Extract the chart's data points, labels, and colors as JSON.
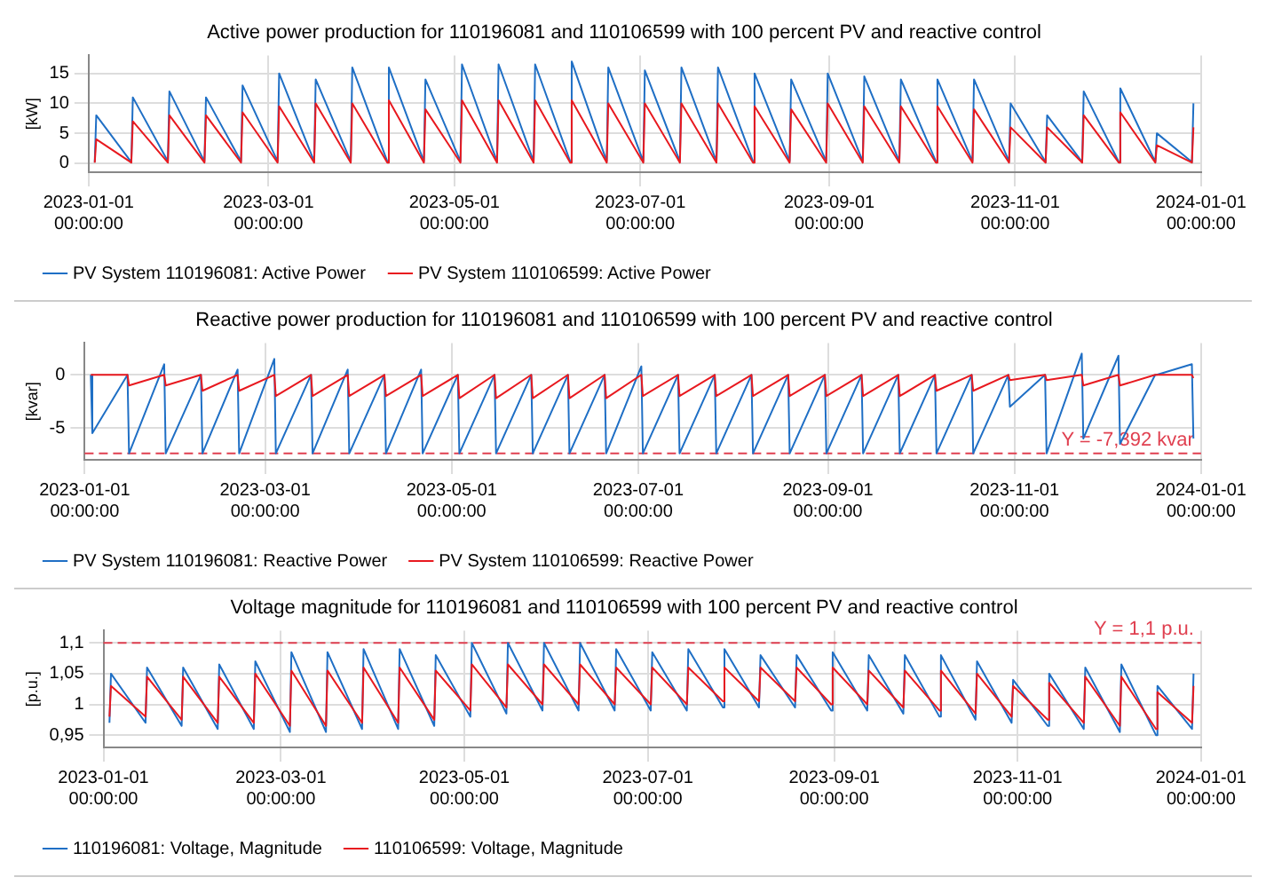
{
  "chart_data": [
    {
      "type": "line",
      "title": "Active power production for 110196081 and 110106599 with 100 percent PV and reactive control",
      "ylabel": "[kW]",
      "x": [
        "2023-01-03",
        "2023-01-03T12:00",
        "2023-01-15",
        "2023-01-15T12:00",
        "2023-01-27",
        "2023-01-27T12:00",
        "2023-02-08",
        "2023-02-08T12:00",
        "2023-02-20",
        "2023-02-20T12:00",
        "2023-03-04",
        "2023-03-04T12:00",
        "2023-03-16",
        "2023-03-16T12:00",
        "2023-03-28",
        "2023-03-28T12:00",
        "2023-04-09",
        "2023-04-09T12:00",
        "2023-04-21",
        "2023-04-21T12:00",
        "2023-05-03",
        "2023-05-03T12:00",
        "2023-05-15",
        "2023-05-15T12:00",
        "2023-05-27",
        "2023-05-27T12:00",
        "2023-06-08",
        "2023-06-08T12:00",
        "2023-06-20",
        "2023-06-20T12:00",
        "2023-07-02",
        "2023-07-02T12:00",
        "2023-07-14",
        "2023-07-14T12:00",
        "2023-07-26",
        "2023-07-26T12:00",
        "2023-08-07",
        "2023-08-07T12:00",
        "2023-08-19",
        "2023-08-19T12:00",
        "2023-08-31",
        "2023-08-31T12:00",
        "2023-09-12",
        "2023-09-12T12:00",
        "2023-09-24",
        "2023-09-24T12:00",
        "2023-10-06",
        "2023-10-06T12:00",
        "2023-10-18",
        "2023-10-18T12:00",
        "2023-10-30",
        "2023-10-30T12:00",
        "2023-11-11",
        "2023-11-11T12:00",
        "2023-11-23",
        "2023-11-23T12:00",
        "2023-12-05",
        "2023-12-05T12:00",
        "2023-12-17",
        "2023-12-17T12:00",
        "2023-12-29",
        "2023-12-29T12:00"
      ],
      "series": [
        {
          "name": "PV System 110196081: Active Power",
          "color": "#1f6fc5",
          "values": [
            0.2,
            8,
            0.2,
            11,
            0.3,
            12,
            0.3,
            11,
            0.3,
            13,
            0.3,
            15,
            0.3,
            14,
            0.3,
            16,
            0.3,
            16,
            0.3,
            14,
            0.3,
            16.5,
            0.3,
            16.5,
            0.3,
            16.5,
            0.3,
            17,
            0.3,
            16,
            0.3,
            15.5,
            0.3,
            16,
            0.3,
            16,
            0.3,
            15,
            0.3,
            14,
            0.3,
            15,
            0.3,
            14.5,
            0.3,
            14,
            0.3,
            14,
            0.3,
            14,
            0.3,
            10,
            0.2,
            8,
            0.2,
            12,
            0.2,
            12.5,
            0.2,
            5,
            0.2,
            10
          ]
        },
        {
          "name": "PV System 110106599: Active Power",
          "color": "#e8191f",
          "values": [
            0.1,
            4,
            0.1,
            7,
            0.1,
            8,
            0.1,
            8,
            0.1,
            8.5,
            0.1,
            9.5,
            0.1,
            10,
            0.1,
            10,
            0.1,
            10.5,
            0.1,
            9,
            0.1,
            10.5,
            0.1,
            10.5,
            0.1,
            10.5,
            0.1,
            10.5,
            0.1,
            10,
            0.1,
            10,
            0.1,
            10,
            0.1,
            10,
            0.1,
            9.5,
            0.1,
            9,
            0.1,
            10,
            0.1,
            9.5,
            0.1,
            9.5,
            0.1,
            9.5,
            0.1,
            9,
            0.1,
            6,
            0.1,
            6,
            0.1,
            8,
            0.1,
            8.5,
            0.1,
            3,
            0.1,
            6
          ]
        }
      ],
      "xlim": [
        "2023-01-01",
        "2024-01-01"
      ],
      "xticks": [
        {
          "value": "2023-01-01",
          "label": "2023-01-01 00:00:00"
        },
        {
          "value": "2023-03-01",
          "label": "2023-03-01 00:00:00"
        },
        {
          "value": "2023-05-01",
          "label": "2023-05-01 00:00:00"
        },
        {
          "value": "2023-07-01",
          "label": "2023-07-01 00:00:00"
        },
        {
          "value": "2023-09-01",
          "label": "2023-09-01 00:00:00"
        },
        {
          "value": "2023-11-01",
          "label": "2023-11-01 00:00:00"
        },
        {
          "value": "2024-01-01",
          "label": "2024-01-01 00:00:00"
        }
      ],
      "ylim": [
        -1.5,
        18
      ],
      "yticks": [
        0,
        5,
        10,
        15
      ],
      "grid": true,
      "legend": "bottom left",
      "marker": "none",
      "line_style": "solid"
    },
    {
      "type": "line",
      "title": "Reactive power production for 110196081 and 110106599 with 100 percent PV and reactive control",
      "ylabel": "[kvar]",
      "x": [
        "2023-01-03",
        "2023-01-03T12:00",
        "2023-01-15",
        "2023-01-15T12:00",
        "2023-01-27",
        "2023-01-27T12:00",
        "2023-02-08",
        "2023-02-08T12:00",
        "2023-02-20",
        "2023-02-20T12:00",
        "2023-03-04",
        "2023-03-04T12:00",
        "2023-03-16",
        "2023-03-16T12:00",
        "2023-03-28",
        "2023-03-28T12:00",
        "2023-04-09",
        "2023-04-09T12:00",
        "2023-04-21",
        "2023-04-21T12:00",
        "2023-05-03",
        "2023-05-03T12:00",
        "2023-05-15",
        "2023-05-15T12:00",
        "2023-05-27",
        "2023-05-27T12:00",
        "2023-06-08",
        "2023-06-08T12:00",
        "2023-06-20",
        "2023-06-20T12:00",
        "2023-07-02",
        "2023-07-02T12:00",
        "2023-07-14",
        "2023-07-14T12:00",
        "2023-07-26",
        "2023-07-26T12:00",
        "2023-08-07",
        "2023-08-07T12:00",
        "2023-08-19",
        "2023-08-19T12:00",
        "2023-08-31",
        "2023-08-31T12:00",
        "2023-09-12",
        "2023-09-12T12:00",
        "2023-09-24",
        "2023-09-24T12:00",
        "2023-10-06",
        "2023-10-06T12:00",
        "2023-10-18",
        "2023-10-18T12:00",
        "2023-10-30",
        "2023-10-30T12:00",
        "2023-11-11",
        "2023-11-11T12:00",
        "2023-11-23",
        "2023-11-23T12:00",
        "2023-12-05",
        "2023-12-05T12:00",
        "2023-12-17",
        "2023-12-17T12:00",
        "2023-12-29",
        "2023-12-29T12:00"
      ],
      "series": [
        {
          "name": "PV System 110196081: Reactive Power",
          "color": "#1f6fc5",
          "values": [
            0,
            -5.5,
            0,
            -7.4,
            1,
            -7.4,
            0,
            -7.4,
            0.5,
            -7.4,
            1.5,
            -7.4,
            0,
            -7.4,
            0.5,
            -7.4,
            0,
            -7.4,
            0.5,
            -7.4,
            0,
            -7.4,
            0,
            -7.4,
            0,
            -7.4,
            0,
            -7.4,
            0,
            -7.4,
            0.8,
            -7.4,
            0,
            -7.4,
            0,
            -7.4,
            0,
            -7.4,
            0,
            -7.4,
            0,
            -7.4,
            0,
            -7.4,
            0,
            -7.4,
            0,
            -7.4,
            0,
            -7.4,
            0,
            -3,
            0,
            -7.4,
            2,
            -6,
            1.8,
            -6.5,
            0,
            0,
            1,
            -6
          ]
        },
        {
          "name": "PV System 110106599: Reactive Power",
          "color": "#e8191f",
          "values": [
            0,
            0,
            0,
            -1,
            0,
            -1,
            0,
            -1.5,
            0,
            -1.5,
            0,
            -2,
            0,
            -2,
            0,
            -2,
            0,
            -2,
            0,
            -2,
            0,
            -2.2,
            0,
            -2.2,
            0,
            -2.2,
            0,
            -2.2,
            0,
            -2.2,
            0,
            -2,
            0,
            -2,
            0,
            -2,
            0,
            -2,
            0,
            -2,
            0,
            -2,
            0,
            -2,
            0,
            -2,
            0,
            -1.5,
            0,
            -1.5,
            0,
            -0.5,
            0,
            -0.5,
            0,
            -1,
            0,
            -1,
            0,
            0,
            0,
            -0.3
          ]
        }
      ],
      "xlim": [
        "2023-01-01",
        "2024-01-01"
      ],
      "xticks": [
        {
          "value": "2023-01-01",
          "label": "2023-01-01 00:00:00"
        },
        {
          "value": "2023-03-01",
          "label": "2023-03-01 00:00:00"
        },
        {
          "value": "2023-05-01",
          "label": "2023-05-01 00:00:00"
        },
        {
          "value": "2023-07-01",
          "label": "2023-07-01 00:00:00"
        },
        {
          "value": "2023-09-01",
          "label": "2023-09-01 00:00:00"
        },
        {
          "value": "2023-11-01",
          "label": "2023-11-01 00:00:00"
        },
        {
          "value": "2024-01-01",
          "label": "2024-01-01 00:00:00"
        }
      ],
      "ylim": [
        -8,
        3
      ],
      "yticks": [
        -5,
        0
      ],
      "ref_lines": [
        {
          "axis": "y",
          "value": -7.392,
          "label": "Y = -7,392 kvar",
          "color": "#e04050",
          "line_style": "dashed"
        }
      ],
      "grid": true,
      "legend": "bottom left",
      "marker": "none",
      "line_style": "solid"
    },
    {
      "type": "line",
      "title": "Voltage magnitude for 110196081 and 110106599 with 100 percent PV and reactive control",
      "ylabel": "[p.u.]",
      "x": [
        "2023-01-03",
        "2023-01-03T12:00",
        "2023-01-15",
        "2023-01-15T12:00",
        "2023-01-27",
        "2023-01-27T12:00",
        "2023-02-08",
        "2023-02-08T12:00",
        "2023-02-20",
        "2023-02-20T12:00",
        "2023-03-04",
        "2023-03-04T12:00",
        "2023-03-16",
        "2023-03-16T12:00",
        "2023-03-28",
        "2023-03-28T12:00",
        "2023-04-09",
        "2023-04-09T12:00",
        "2023-04-21",
        "2023-04-21T12:00",
        "2023-05-03",
        "2023-05-03T12:00",
        "2023-05-15",
        "2023-05-15T12:00",
        "2023-05-27",
        "2023-05-27T12:00",
        "2023-06-08",
        "2023-06-08T12:00",
        "2023-06-20",
        "2023-06-20T12:00",
        "2023-07-02",
        "2023-07-02T12:00",
        "2023-07-14",
        "2023-07-14T12:00",
        "2023-07-26",
        "2023-07-26T12:00",
        "2023-08-07",
        "2023-08-07T12:00",
        "2023-08-19",
        "2023-08-19T12:00",
        "2023-08-31",
        "2023-08-31T12:00",
        "2023-09-12",
        "2023-09-12T12:00",
        "2023-09-24",
        "2023-09-24T12:00",
        "2023-10-06",
        "2023-10-06T12:00",
        "2023-10-18",
        "2023-10-18T12:00",
        "2023-10-30",
        "2023-10-30T12:00",
        "2023-11-11",
        "2023-11-11T12:00",
        "2023-11-23",
        "2023-11-23T12:00",
        "2023-12-05",
        "2023-12-05T12:00",
        "2023-12-17",
        "2023-12-17T12:00",
        "2023-12-29",
        "2023-12-29T12:00"
      ],
      "series": [
        {
          "name": "110196081: Voltage, Magnitude",
          "color": "#1f6fc5",
          "values": [
            0.97,
            1.05,
            0.97,
            1.06,
            0.965,
            1.06,
            0.96,
            1.065,
            0.96,
            1.07,
            0.955,
            1.085,
            0.955,
            1.085,
            0.96,
            1.09,
            0.96,
            1.09,
            0.965,
            1.08,
            0.98,
            1.1,
            0.985,
            1.1,
            0.99,
            1.1,
            0.99,
            1.1,
            0.99,
            1.09,
            0.99,
            1.085,
            0.99,
            1.09,
            0.995,
            1.09,
            0.995,
            1.08,
            0.995,
            1.08,
            0.99,
            1.085,
            0.99,
            1.08,
            0.985,
            1.08,
            0.98,
            1.08,
            0.975,
            1.07,
            0.97,
            1.04,
            0.965,
            1.05,
            0.96,
            1.06,
            0.955,
            1.065,
            0.95,
            1.03,
            0.96,
            1.05
          ]
        },
        {
          "name": "110106599: Voltage, Magnitude",
          "color": "#e8191f",
          "values": [
            0.98,
            1.03,
            0.98,
            1.045,
            0.975,
            1.045,
            0.97,
            1.045,
            0.97,
            1.05,
            0.965,
            1.055,
            0.965,
            1.055,
            0.97,
            1.06,
            0.97,
            1.06,
            0.975,
            1.055,
            0.99,
            1.065,
            0.995,
            1.065,
            1,
            1.065,
            1,
            1.065,
            1,
            1.06,
            1,
            1.06,
            1,
            1.06,
            1.005,
            1.06,
            1.005,
            1.06,
            1.005,
            1.06,
            1,
            1.06,
            1,
            1.055,
            0.995,
            1.055,
            0.99,
            1.055,
            0.985,
            1.05,
            0.98,
            1.03,
            0.975,
            1.035,
            0.97,
            1.045,
            0.965,
            1.045,
            0.96,
            1.02,
            0.97,
            1.03
          ]
        }
      ],
      "xlim": [
        "2023-01-01",
        "2024-01-01"
      ],
      "xticks": [
        {
          "value": "2023-01-01",
          "label": "2023-01-01 00:00:00"
        },
        {
          "value": "2023-03-01",
          "label": "2023-03-01 00:00:00"
        },
        {
          "value": "2023-05-01",
          "label": "2023-05-01 00:00:00"
        },
        {
          "value": "2023-07-01",
          "label": "2023-07-01 00:00:00"
        },
        {
          "value": "2023-09-01",
          "label": "2023-09-01 00:00:00"
        },
        {
          "value": "2023-11-01",
          "label": "2023-11-01 00:00:00"
        },
        {
          "value": "2024-01-01",
          "label": "2024-01-01 00:00:00"
        }
      ],
      "ylim": [
        0.93,
        1.12
      ],
      "yticks": [
        {
          "value": 0.95,
          "label": "0,95"
        },
        {
          "value": 1,
          "label": "1"
        },
        {
          "value": 1.05,
          "label": "1,05"
        },
        {
          "value": 1.1,
          "label": "1,1"
        }
      ],
      "ref_lines": [
        {
          "axis": "y",
          "value": 1.1,
          "label": "Y = 1,1 p.u.",
          "color": "#e04050",
          "line_style": "dashed"
        }
      ],
      "grid": true,
      "legend": "bottom left",
      "marker": "none",
      "line_style": "solid"
    }
  ]
}
